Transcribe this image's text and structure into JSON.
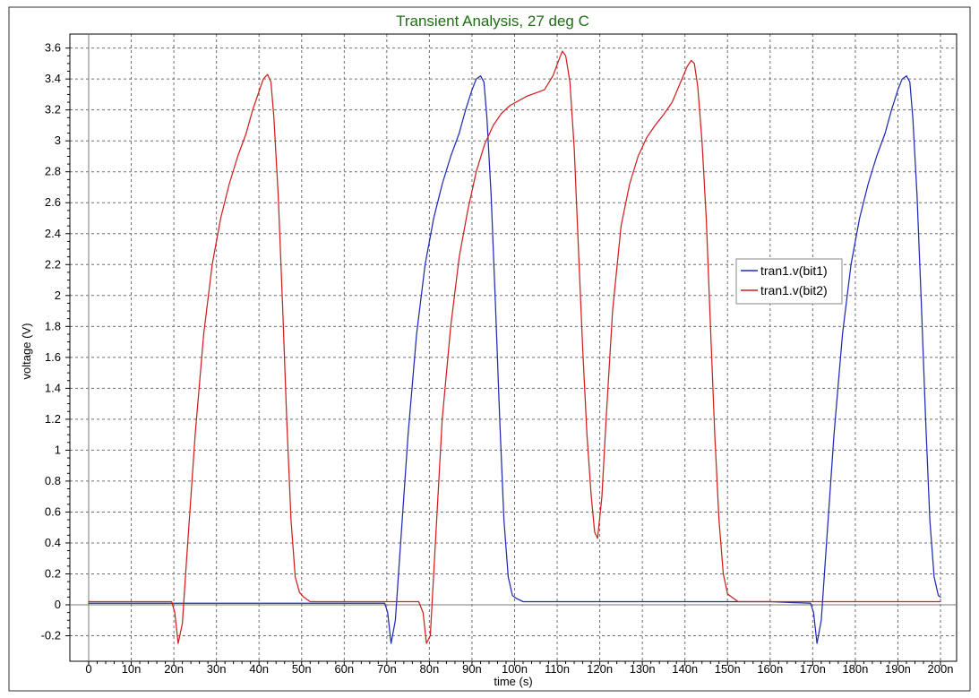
{
  "chart_data": {
    "type": "line",
    "title": "Transient Analysis, 27 deg C",
    "xlabel": "time (s)",
    "ylabel": "voltage (V)",
    "xlim": [
      0,
      200
    ],
    "ylim": [
      -0.25,
      3.65
    ],
    "xticks": [
      0,
      10,
      20,
      30,
      40,
      50,
      60,
      70,
      80,
      90,
      100,
      110,
      120,
      130,
      140,
      150,
      160,
      170,
      180,
      190,
      200
    ],
    "xtick_labels": [
      "0",
      "10n",
      "20n",
      "30n",
      "40n",
      "50n",
      "60n",
      "70n",
      "80n",
      "90n",
      "100n",
      "110n",
      "120n",
      "130n",
      "140n",
      "150n",
      "160n",
      "170n",
      "180n",
      "190n",
      "200n"
    ],
    "yticks": [
      -0.2,
      0,
      0.2,
      0.4,
      0.6,
      0.8,
      1,
      1.2,
      1.4,
      1.6,
      1.8,
      2,
      2.2,
      2.4,
      2.6,
      2.8,
      3,
      3.2,
      3.4,
      3.6
    ],
    "ytick_labels": [
      "-0.2",
      "0",
      "0.2",
      "0.4",
      "0.6",
      "0.8",
      "1",
      "1.2",
      "1.4",
      "1.6",
      "1.8",
      "2",
      "2.2",
      "2.4",
      "2.6",
      "2.8",
      "3",
      "3.2",
      "3.4",
      "3.6"
    ],
    "grid": true,
    "legend_position": "right-center",
    "series": [
      {
        "name": "tran1.v(bit1)",
        "color": "#1f2bb5",
        "x": [
          0,
          69.5,
          70.2,
          71,
          72,
          73,
          75,
          77,
          79,
          81,
          83,
          85,
          87,
          88.5,
          90,
          91,
          92,
          92.8,
          93.5,
          94.5,
          95.5,
          96.5,
          97.5,
          98.5,
          99.5,
          100.5,
          102,
          120,
          140,
          160,
          169.5,
          170.2,
          171,
          172,
          173,
          175,
          177,
          179,
          181,
          183,
          185,
          187,
          188.5,
          190,
          191,
          192,
          192.8,
          193.5,
          194.5,
          195.5,
          196.5,
          197.5,
          198.5,
          199.5,
          200
        ],
        "y": [
          0.01,
          0.01,
          -0.05,
          -0.25,
          -0.1,
          0.3,
          1.1,
          1.75,
          2.2,
          2.5,
          2.72,
          2.9,
          3.05,
          3.2,
          3.33,
          3.4,
          3.42,
          3.38,
          3.15,
          2.65,
          1.95,
          1.2,
          0.55,
          0.18,
          0.06,
          0.04,
          0.02,
          0.02,
          0.02,
          0.02,
          0.01,
          -0.05,
          -0.25,
          -0.1,
          0.3,
          1.1,
          1.75,
          2.2,
          2.5,
          2.72,
          2.9,
          3.05,
          3.2,
          3.33,
          3.4,
          3.42,
          3.38,
          3.15,
          2.65,
          1.95,
          1.2,
          0.55,
          0.18,
          0.06,
          0.05
        ]
      },
      {
        "name": "tran1.v(bit2)",
        "color": "#d11f1f",
        "x": [
          0,
          19.5,
          20.2,
          21,
          22,
          23,
          25,
          27,
          29,
          31,
          33,
          35,
          37,
          38.5,
          40,
          41,
          42,
          42.8,
          43.5,
          44.5,
          45.5,
          46.5,
          47.5,
          48.5,
          49.5,
          50.5,
          52,
          60,
          70,
          77.5,
          78.5,
          79.3,
          80.2,
          81,
          83,
          85,
          87,
          89,
          91,
          93,
          95,
          97,
          99,
          101,
          103,
          105,
          107,
          109,
          110.5,
          111.2,
          112,
          113,
          114,
          115,
          116,
          117,
          118,
          118.8,
          119.5,
          120.5,
          121.5,
          123,
          125,
          127,
          129,
          131,
          133,
          135,
          137,
          139,
          140.5,
          141.5,
          142.2,
          143,
          144,
          145,
          146,
          147,
          148,
          149,
          150,
          151,
          152.5,
          160,
          180,
          200
        ],
        "y": [
          0.02,
          0.02,
          -0.05,
          -0.25,
          -0.12,
          0.3,
          1.1,
          1.75,
          2.2,
          2.5,
          2.72,
          2.9,
          3.05,
          3.2,
          3.32,
          3.4,
          3.43,
          3.38,
          3.15,
          2.65,
          1.95,
          1.2,
          0.55,
          0.18,
          0.08,
          0.05,
          0.02,
          0.02,
          0.02,
          0.02,
          -0.05,
          -0.25,
          -0.2,
          0.2,
          1.2,
          1.8,
          2.25,
          2.55,
          2.8,
          2.98,
          3.1,
          3.18,
          3.23,
          3.26,
          3.29,
          3.31,
          3.33,
          3.42,
          3.53,
          3.58,
          3.55,
          3.38,
          2.95,
          2.3,
          1.65,
          1.1,
          0.7,
          0.47,
          0.43,
          0.7,
          1.2,
          1.9,
          2.45,
          2.72,
          2.9,
          3.02,
          3.1,
          3.17,
          3.25,
          3.38,
          3.48,
          3.52,
          3.5,
          3.35,
          3.0,
          2.5,
          1.8,
          1.1,
          0.55,
          0.2,
          0.07,
          0.05,
          0.02,
          0.02,
          0.02,
          0.02
        ]
      }
    ]
  }
}
